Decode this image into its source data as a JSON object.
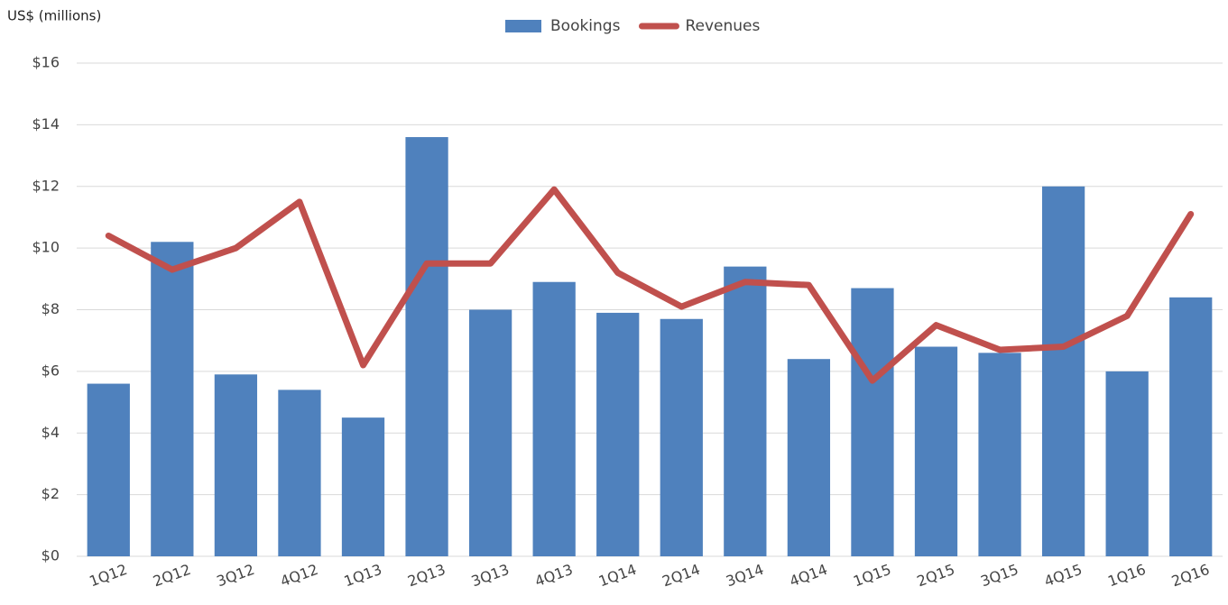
{
  "chart_data": {
    "type": "bar-line",
    "y_axis_label": "US$ (millions)",
    "categories": [
      "1Q12",
      "2Q12",
      "3Q12",
      "4Q12",
      "1Q13",
      "2Q13",
      "3Q13",
      "4Q13",
      "1Q14",
      "2Q14",
      "3Q14",
      "4Q14",
      "1Q15",
      "2Q15",
      "3Q15",
      "4Q15",
      "1Q16",
      "2Q16"
    ],
    "series": [
      {
        "name": "Bookings",
        "type": "bar",
        "color": "#4f81bd",
        "values": [
          5.6,
          10.2,
          5.9,
          5.4,
          4.5,
          13.6,
          8.0,
          8.9,
          7.9,
          7.7,
          9.4,
          6.4,
          8.7,
          6.8,
          6.6,
          12.0,
          6.0,
          8.4
        ]
      },
      {
        "name": "Revenues",
        "type": "line",
        "color": "#c0504d",
        "values": [
          10.4,
          9.3,
          10.0,
          11.5,
          6.2,
          9.5,
          9.5,
          11.9,
          9.2,
          8.1,
          8.9,
          8.8,
          5.7,
          7.5,
          6.7,
          6.8,
          7.8,
          11.1
        ]
      }
    ],
    "ylim": [
      0,
      16
    ],
    "yticks": [
      {
        "value": 0,
        "label": "$0"
      },
      {
        "value": 2,
        "label": "$2"
      },
      {
        "value": 4,
        "label": "$4"
      },
      {
        "value": 6,
        "label": "$6"
      },
      {
        "value": 8,
        "label": "$8"
      },
      {
        "value": 10,
        "label": "$10"
      },
      {
        "value": 12,
        "label": "$12"
      },
      {
        "value": 14,
        "label": "$14"
      },
      {
        "value": 16,
        "label": "$16"
      }
    ],
    "grid": true,
    "legend": "top"
  }
}
